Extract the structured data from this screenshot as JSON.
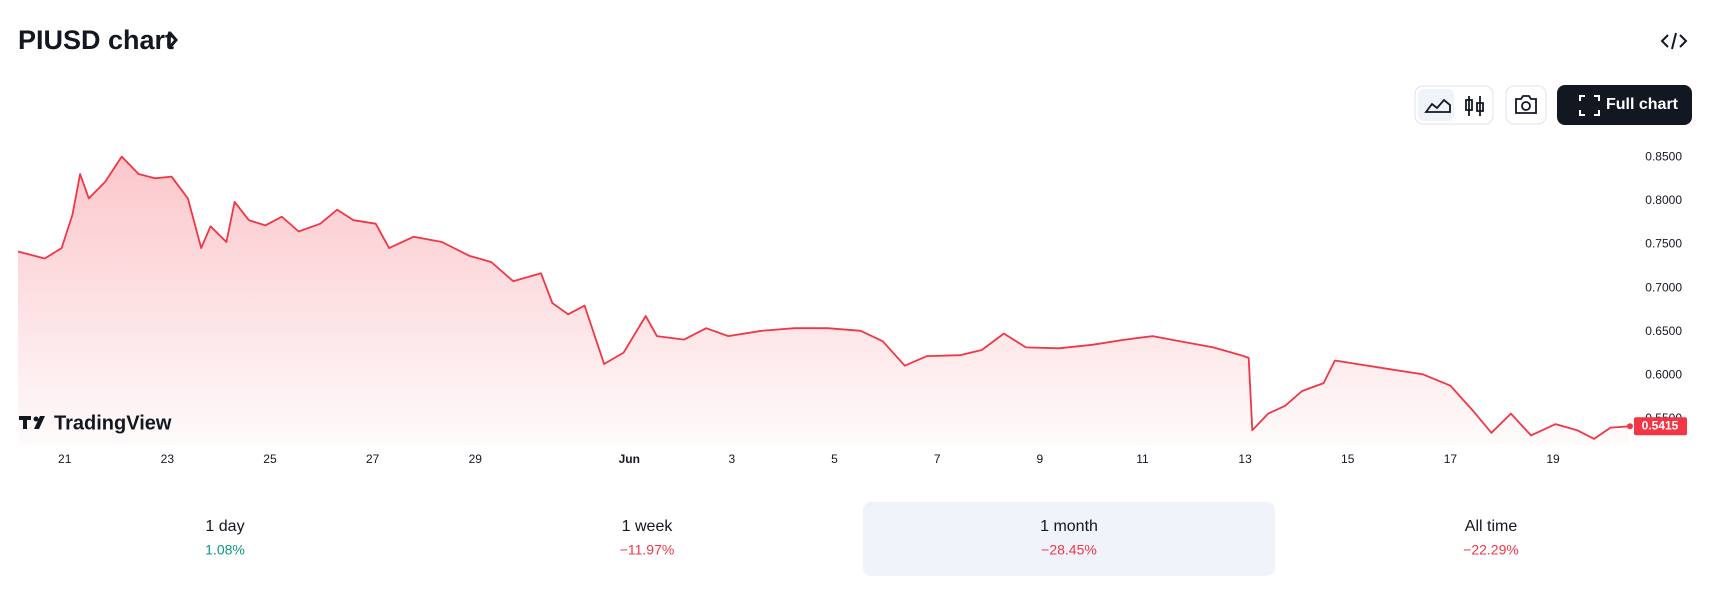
{
  "header": {
    "title": "PIUSD chart",
    "full_chart_button": "Full chart"
  },
  "chart_data": {
    "type": "area",
    "color": "#f23645",
    "x": [
      -0.91,
      -0.39,
      -0.06,
      0.15,
      0.3,
      0.47,
      0.79,
      1.11,
      1.44,
      1.76,
      2.08,
      2.4,
      2.66,
      2.84,
      3.15,
      3.31,
      3.59,
      3.91,
      4.23,
      4.56,
      4.98,
      5.31,
      5.63,
      6.06,
      6.32,
      6.8,
      7.35,
      7.89,
      8.31,
      8.74,
      9.28,
      9.5,
      9.81,
      10.13,
      10.51,
      10.89,
      11.32,
      11.54,
      12.07,
      12.5,
      12.93,
      13.58,
      14.22,
      14.87,
      15.51,
      15.94,
      16.37,
      16.8,
      17.44,
      17.87,
      18.3,
      18.73,
      19.37,
      20.02,
      20.66,
      21.2,
      21.73,
      22.38,
      22.92,
      23.07,
      23.14,
      23.45,
      23.78,
      24.11,
      24.53,
      24.75,
      25.18,
      25.82,
      26.47,
      27.0,
      27.43,
      27.8,
      28.18,
      28.57,
      29.05,
      29.47,
      29.8,
      30.12,
      30.5
    ],
    "values": [
      0.742,
      0.734,
      0.746,
      0.784,
      0.831,
      0.803,
      0.822,
      0.851,
      0.831,
      0.826,
      0.828,
      0.803,
      0.746,
      0.771,
      0.753,
      0.799,
      0.778,
      0.772,
      0.782,
      0.765,
      0.774,
      0.79,
      0.778,
      0.774,
      0.746,
      0.759,
      0.753,
      0.737,
      0.73,
      0.708,
      0.717,
      0.683,
      0.67,
      0.68,
      0.613,
      0.626,
      0.668,
      0.645,
      0.641,
      0.654,
      0.645,
      0.651,
      0.654,
      0.654,
      0.651,
      0.639,
      0.611,
      0.622,
      0.623,
      0.629,
      0.648,
      0.632,
      0.631,
      0.635,
      0.641,
      0.645,
      0.639,
      0.632,
      0.623,
      0.62,
      0.537,
      0.556,
      0.565,
      0.582,
      0.591,
      0.617,
      0.613,
      0.607,
      0.601,
      0.588,
      0.56,
      0.534,
      0.556,
      0.531,
      0.544,
      0.537,
      0.527,
      0.54,
      0.5415
    ],
    "last_price_label": "0.5415",
    "xlim": [
      -0.91,
      30.5
    ],
    "xticks": [
      {
        "value": 0,
        "label": "21"
      },
      {
        "value": 2,
        "label": "23"
      },
      {
        "value": 4,
        "label": "25"
      },
      {
        "value": 6,
        "label": "27"
      },
      {
        "value": 8,
        "label": "29"
      },
      {
        "value": 11,
        "label": "Jun"
      },
      {
        "value": 13,
        "label": "3"
      },
      {
        "value": 15,
        "label": "5"
      },
      {
        "value": 17,
        "label": "7"
      },
      {
        "value": 19,
        "label": "9"
      },
      {
        "value": 21,
        "label": "11"
      },
      {
        "value": 23,
        "label": "13"
      },
      {
        "value": 25,
        "label": "15"
      },
      {
        "value": 27,
        "label": "17"
      },
      {
        "value": 29,
        "label": "19"
      }
    ],
    "ylim": [
      0.52,
      0.87
    ],
    "yticks": [
      {
        "value": 0.55,
        "label": "0.5500"
      },
      {
        "value": 0.6,
        "label": "0.6000"
      },
      {
        "value": 0.65,
        "label": "0.6500"
      },
      {
        "value": 0.7,
        "label": "0.7000"
      },
      {
        "value": 0.75,
        "label": "0.7500"
      },
      {
        "value": 0.8,
        "label": "0.8000"
      },
      {
        "value": 0.85,
        "label": "0.8500"
      }
    ],
    "watermark": "TradingView"
  },
  "performance": {
    "selected_index": 2,
    "items": [
      {
        "period": "1 day",
        "change": "1.08%",
        "color": "#089981"
      },
      {
        "period": "1 week",
        "change": "−11.97%",
        "color": "#f23645"
      },
      {
        "period": "1 month",
        "change": "−28.45%",
        "color": "#f23645"
      },
      {
        "period": "All time",
        "change": "−22.29%",
        "color": "#f23645"
      }
    ]
  }
}
